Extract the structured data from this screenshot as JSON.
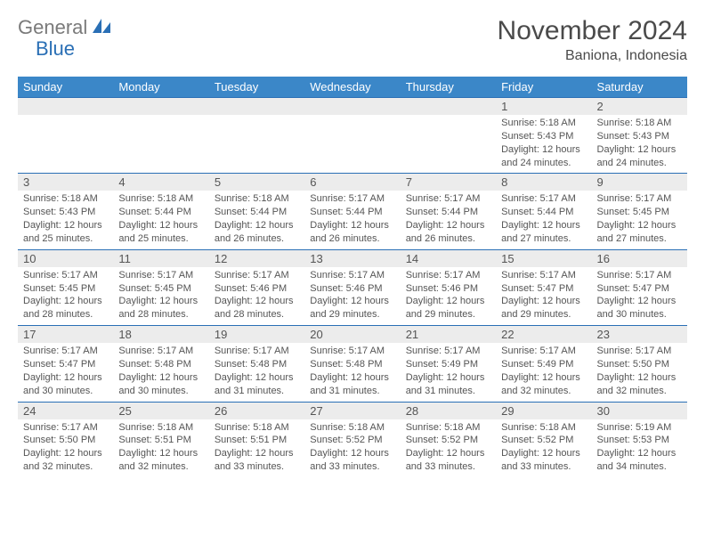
{
  "logo": {
    "part1": "General",
    "part2": "Blue"
  },
  "title": "November 2024",
  "subtitle": "Baniona, Indonesia",
  "colors": {
    "header_bg": "#3b87c8",
    "header_text": "#ffffff",
    "row_border": "#2a6fb5",
    "daynum_bg": "#ececec",
    "text": "#555555",
    "logo_gray": "#7a7a7a",
    "logo_blue": "#2a6fb5",
    "page_bg": "#ffffff"
  },
  "weekdays": [
    "Sunday",
    "Monday",
    "Tuesday",
    "Wednesday",
    "Thursday",
    "Friday",
    "Saturday"
  ],
  "weeks": [
    [
      null,
      null,
      null,
      null,
      null,
      {
        "n": "1",
        "sr": "5:18 AM",
        "ss": "5:43 PM",
        "dl": "12 hours and 24 minutes."
      },
      {
        "n": "2",
        "sr": "5:18 AM",
        "ss": "5:43 PM",
        "dl": "12 hours and 24 minutes."
      }
    ],
    [
      {
        "n": "3",
        "sr": "5:18 AM",
        "ss": "5:43 PM",
        "dl": "12 hours and 25 minutes."
      },
      {
        "n": "4",
        "sr": "5:18 AM",
        "ss": "5:44 PM",
        "dl": "12 hours and 25 minutes."
      },
      {
        "n": "5",
        "sr": "5:18 AM",
        "ss": "5:44 PM",
        "dl": "12 hours and 26 minutes."
      },
      {
        "n": "6",
        "sr": "5:17 AM",
        "ss": "5:44 PM",
        "dl": "12 hours and 26 minutes."
      },
      {
        "n": "7",
        "sr": "5:17 AM",
        "ss": "5:44 PM",
        "dl": "12 hours and 26 minutes."
      },
      {
        "n": "8",
        "sr": "5:17 AM",
        "ss": "5:44 PM",
        "dl": "12 hours and 27 minutes."
      },
      {
        "n": "9",
        "sr": "5:17 AM",
        "ss": "5:45 PM",
        "dl": "12 hours and 27 minutes."
      }
    ],
    [
      {
        "n": "10",
        "sr": "5:17 AM",
        "ss": "5:45 PM",
        "dl": "12 hours and 28 minutes."
      },
      {
        "n": "11",
        "sr": "5:17 AM",
        "ss": "5:45 PM",
        "dl": "12 hours and 28 minutes."
      },
      {
        "n": "12",
        "sr": "5:17 AM",
        "ss": "5:46 PM",
        "dl": "12 hours and 28 minutes."
      },
      {
        "n": "13",
        "sr": "5:17 AM",
        "ss": "5:46 PM",
        "dl": "12 hours and 29 minutes."
      },
      {
        "n": "14",
        "sr": "5:17 AM",
        "ss": "5:46 PM",
        "dl": "12 hours and 29 minutes."
      },
      {
        "n": "15",
        "sr": "5:17 AM",
        "ss": "5:47 PM",
        "dl": "12 hours and 29 minutes."
      },
      {
        "n": "16",
        "sr": "5:17 AM",
        "ss": "5:47 PM",
        "dl": "12 hours and 30 minutes."
      }
    ],
    [
      {
        "n": "17",
        "sr": "5:17 AM",
        "ss": "5:47 PM",
        "dl": "12 hours and 30 minutes."
      },
      {
        "n": "18",
        "sr": "5:17 AM",
        "ss": "5:48 PM",
        "dl": "12 hours and 30 minutes."
      },
      {
        "n": "19",
        "sr": "5:17 AM",
        "ss": "5:48 PM",
        "dl": "12 hours and 31 minutes."
      },
      {
        "n": "20",
        "sr": "5:17 AM",
        "ss": "5:48 PM",
        "dl": "12 hours and 31 minutes."
      },
      {
        "n": "21",
        "sr": "5:17 AM",
        "ss": "5:49 PM",
        "dl": "12 hours and 31 minutes."
      },
      {
        "n": "22",
        "sr": "5:17 AM",
        "ss": "5:49 PM",
        "dl": "12 hours and 32 minutes."
      },
      {
        "n": "23",
        "sr": "5:17 AM",
        "ss": "5:50 PM",
        "dl": "12 hours and 32 minutes."
      }
    ],
    [
      {
        "n": "24",
        "sr": "5:17 AM",
        "ss": "5:50 PM",
        "dl": "12 hours and 32 minutes."
      },
      {
        "n": "25",
        "sr": "5:18 AM",
        "ss": "5:51 PM",
        "dl": "12 hours and 32 minutes."
      },
      {
        "n": "26",
        "sr": "5:18 AM",
        "ss": "5:51 PM",
        "dl": "12 hours and 33 minutes."
      },
      {
        "n": "27",
        "sr": "5:18 AM",
        "ss": "5:52 PM",
        "dl": "12 hours and 33 minutes."
      },
      {
        "n": "28",
        "sr": "5:18 AM",
        "ss": "5:52 PM",
        "dl": "12 hours and 33 minutes."
      },
      {
        "n": "29",
        "sr": "5:18 AM",
        "ss": "5:52 PM",
        "dl": "12 hours and 33 minutes."
      },
      {
        "n": "30",
        "sr": "5:19 AM",
        "ss": "5:53 PM",
        "dl": "12 hours and 34 minutes."
      }
    ]
  ],
  "labels": {
    "sunrise": "Sunrise:",
    "sunset": "Sunset:",
    "daylight": "Daylight:"
  }
}
